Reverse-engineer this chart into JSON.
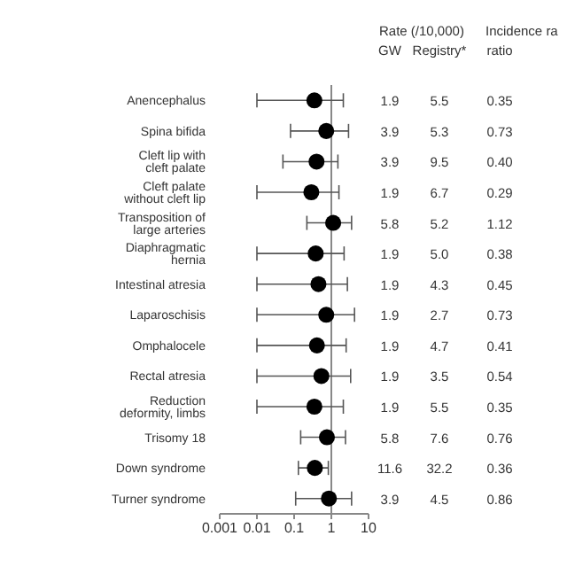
{
  "chart_data": {
    "type": "scatter",
    "orientation": "horizontal",
    "log": "x",
    "categories": [
      "Anencephalus",
      "Spina bifida",
      "Cleft lip with cleft palate",
      "Cleft palate without cleft lip",
      "Transposition of large arteries",
      "Diaphragmatic hernia",
      "Intestinal atresia",
      "Laparoschisis",
      "Omphalocele",
      "Rectal atresia",
      "Reduction deformity, limbs",
      "Trisomy 18",
      "Down syndrome",
      "Turner syndrome"
    ],
    "series": [
      {
        "color": "#000000",
        "values": [
          0.35,
          0.73,
          0.4,
          0.29,
          1.12,
          0.38,
          0.45,
          0.73,
          0.41,
          0.54,
          0.35,
          0.76,
          0.36,
          0.86
        ],
        "value_labels": [
          "0.35",
          "0.73",
          "0.40",
          "0.29",
          "1.12",
          "0.38",
          "0.45",
          "0.73",
          "0.41",
          "0.54",
          "0.35",
          "0.76",
          "0.36",
          "0.86"
        ],
        "errors": [
          [
            0.01,
            2.1
          ],
          [
            0.08,
            2.9
          ],
          [
            0.05,
            1.5
          ],
          [
            0.01,
            1.6
          ],
          [
            0.22,
            3.5
          ],
          [
            0.01,
            2.2
          ],
          [
            0.01,
            2.7
          ],
          [
            0.01,
            4.2
          ],
          [
            0.01,
            2.5
          ],
          [
            0.01,
            3.3
          ],
          [
            0.01,
            2.1
          ],
          [
            0.15,
            2.4
          ],
          [
            0.13,
            0.83
          ],
          [
            0.11,
            3.5
          ]
        ]
      }
    ],
    "xlim": [
      0.001,
      10
    ],
    "xticks": [
      0.001,
      0.01,
      0.1,
      1,
      10
    ],
    "ref_lines": [
      {
        "axis": "x",
        "value": 1,
        "color": "#888888"
      }
    ],
    "marker": "circle",
    "grid": false,
    "legend": false,
    "annotations": [
      "Rate (/10,000)",
      "GW",
      "Registry*",
      "Incidence ra",
      "ratio",
      "1.9",
      "5.5",
      "3.9",
      "5.3",
      "3.9",
      "9.5",
      "1.9",
      "6.7",
      "5.8",
      "5.2",
      "1.9",
      "5.0",
      "1.9",
      "4.3",
      "1.9",
      "2.7",
      "1.9",
      "4.7",
      "1.9",
      "3.5",
      "1.9",
      "5.5",
      "5.8",
      "7.6",
      "11.6",
      "32.2",
      "3.9",
      "4.5"
    ]
  }
}
